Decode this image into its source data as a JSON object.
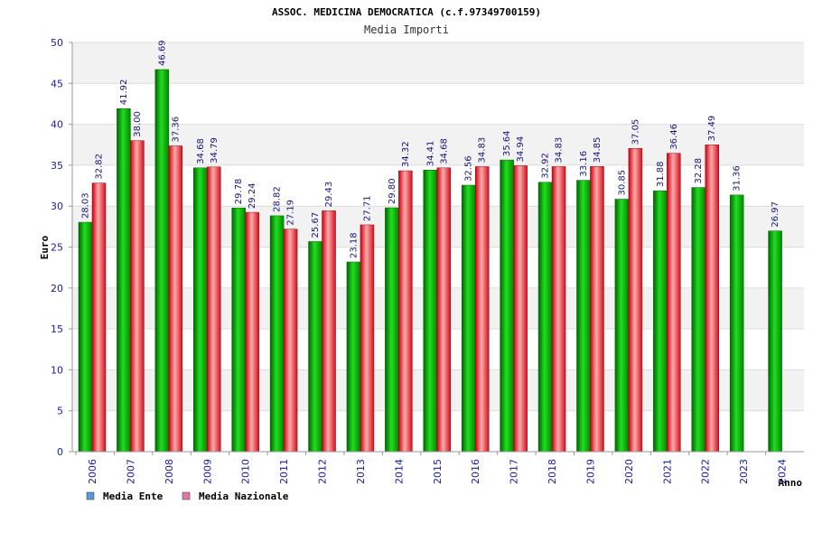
{
  "chart_data": {
    "type": "bar",
    "title": "ASSOC. MEDICINA DEMOCRATICA (c.f.97349700159)",
    "subtitle": "Media Importi",
    "xlabel": "Anno",
    "ylabel": "Euro",
    "ylim": [
      0,
      50
    ],
    "yticks": [
      0,
      5,
      10,
      15,
      20,
      25,
      30,
      35,
      40,
      45,
      50
    ],
    "grid": "horizontal bands",
    "legend_position": "bottom-left",
    "categories": [
      "2006",
      "2007",
      "2008",
      "2009",
      "2010",
      "2011",
      "2012",
      "2013",
      "2014",
      "2015",
      "2016",
      "2017",
      "2018",
      "2019",
      "2020",
      "2021",
      "2022",
      "2023",
      "2024"
    ],
    "series": [
      {
        "name": "Media Ente",
        "color": "#00b300",
        "legend_color": "#5b9bd5",
        "values": [
          28.03,
          41.92,
          46.69,
          34.68,
          29.78,
          28.82,
          25.67,
          23.18,
          29.8,
          34.41,
          32.56,
          35.64,
          32.92,
          33.16,
          30.85,
          31.88,
          32.28,
          31.36,
          26.97
        ],
        "labels": [
          "28.03",
          "41.92",
          "46.69",
          "34.68",
          "29.78",
          "28.82",
          "25.67",
          "23.18",
          "29.80",
          "34.41",
          "32.56",
          "35.64",
          "32.92",
          "33.16",
          "30.85",
          "31.88",
          "32.28",
          "31.36",
          "26.97"
        ]
      },
      {
        "name": "Media Nazionale",
        "color": "#e8202a",
        "legend_color": "#e377a8",
        "values": [
          32.82,
          38.0,
          37.36,
          34.79,
          29.24,
          27.19,
          29.43,
          27.71,
          34.32,
          34.68,
          34.83,
          34.94,
          34.83,
          34.85,
          37.05,
          36.46,
          37.49,
          null,
          null
        ],
        "labels": [
          "32.82",
          "38.00",
          "37.36",
          "34.79",
          "29.24",
          "27.19",
          "29.43",
          "27.71",
          "34.32",
          "34.68",
          "34.83",
          "34.94",
          "34.83",
          "34.85",
          "37.05",
          "36.46",
          "37.49",
          "",
          ""
        ]
      }
    ]
  }
}
